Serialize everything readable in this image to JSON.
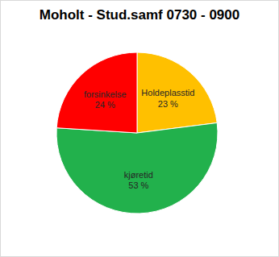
{
  "chart_data": {
    "type": "pie",
    "title": "Moholt - Stud.samf 0730 - 0900",
    "categories": [
      "Holdeplasstid",
      "kjøretid",
      "forsinkelse"
    ],
    "values": [
      23,
      53,
      24
    ],
    "value_labels": [
      "23 %",
      "53 %",
      "24 %"
    ],
    "colors": [
      "#ffc000",
      "#22b14c",
      "#ff0000"
    ],
    "data_labels": true
  }
}
